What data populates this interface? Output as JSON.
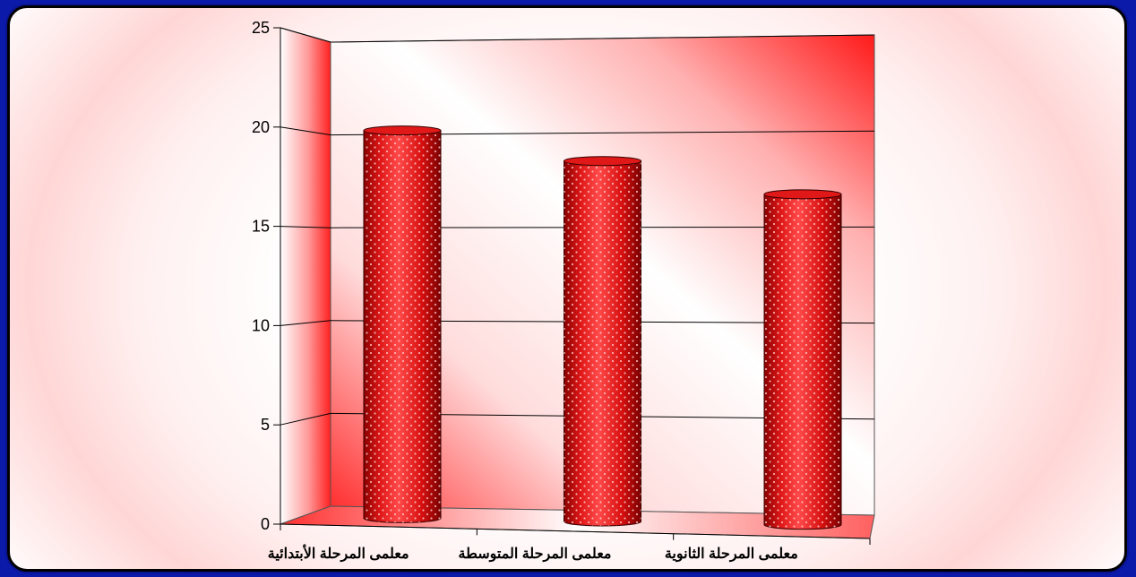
{
  "chart_data": {
    "type": "bar",
    "categories": [
      "معلمى المرحلة الأبتدائية",
      "معلمى المرحلة المتوسطة",
      "معلمى المرحلة الثانوية"
    ],
    "values": [
      20.5,
      18.8,
      17.0
    ],
    "ylim": [
      0,
      25
    ],
    "yticks": [
      0,
      5,
      10,
      15,
      20,
      25
    ],
    "grid": true,
    "bar_color": "#e01818",
    "wall_color": "#ff2a2a",
    "frame_color": "#0b1aa8"
  }
}
